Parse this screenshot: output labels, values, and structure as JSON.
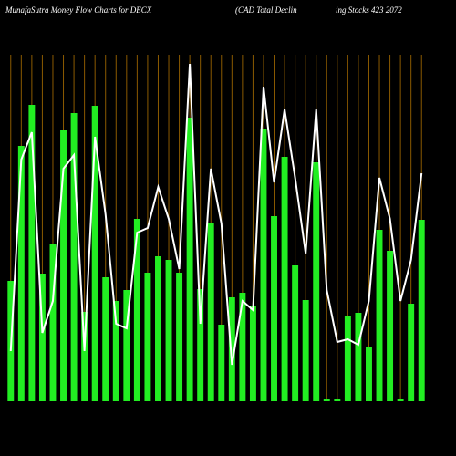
{
  "chart_data": {
    "type": "bar",
    "title": "MunafaSutra  Money Flow  Charts for DECX",
    "subtitle": "(CAD Total Declin",
    "annotations": [
      "ing Stocks 423 2072"
    ],
    "categories": [
      null,
      null,
      null,
      null,
      null,
      null,
      null,
      null,
      null,
      null,
      null,
      null,
      null,
      null,
      null,
      null,
      null,
      null,
      null,
      null,
      null,
      null,
      null,
      null,
      null,
      null,
      null,
      null,
      null,
      null,
      null,
      null,
      null,
      null,
      null,
      null,
      null,
      null,
      null,
      null
    ],
    "series": [
      {
        "name": null,
        "color": "#22ee22",
        "values": [
          132,
          280,
          325,
          140,
          172,
          298,
          316,
          98,
          324,
          136,
          110,
          122,
          200,
          141,
          159,
          155,
          141,
          311,
          123,
          196,
          84,
          114,
          119,
          105,
          299,
          203,
          268,
          149,
          111,
          262,
          2,
          2,
          94,
          97,
          60,
          188,
          165,
          2,
          107,
          199
        ]
      },
      {
        "name": null,
        "color": "#ffffff",
        "values": [
          55,
          265,
          295,
          75,
          110,
          255,
          270,
          55,
          290,
          205,
          85,
          80,
          185,
          190,
          235,
          200,
          145,
          370,
          85,
          255,
          195,
          40,
          110,
          100,
          345,
          240,
          320,
          245,
          162,
          320,
          122,
          65,
          68,
          62,
          110,
          245,
          200,
          110,
          155,
          250
        ]
      }
    ],
    "gridline_color": "#8b5a00",
    "ylim": [
      0,
      380
    ]
  }
}
